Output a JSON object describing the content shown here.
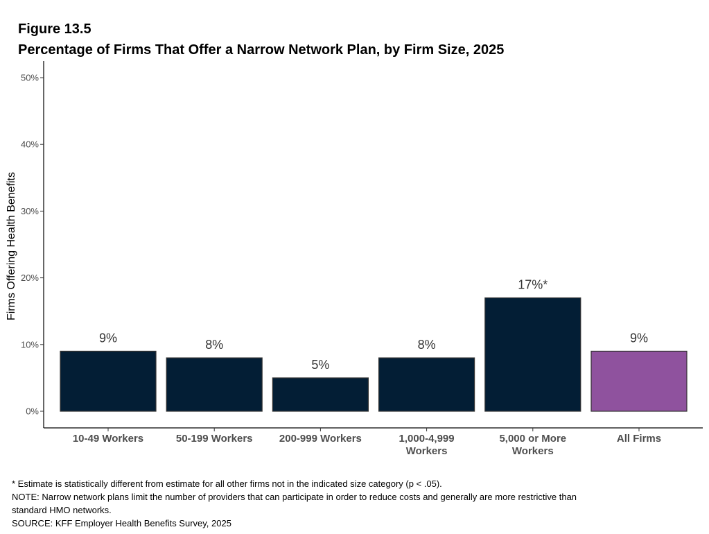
{
  "figure_label": "Figure 13.5",
  "chart_data": {
    "type": "bar",
    "title": "Percentage of Firms That Offer a Narrow Network Plan, by Firm Size, 2025",
    "xlabel": "",
    "ylabel": "Firms Offering Health Benefits",
    "ylim": [
      0,
      50
    ],
    "yticks": [
      "0%",
      "10%",
      "20%",
      "30%",
      "40%",
      "50%"
    ],
    "ytick_values": [
      0,
      10,
      20,
      30,
      40,
      50
    ],
    "categories": [
      [
        "10-49 Workers"
      ],
      [
        "50-199 Workers"
      ],
      [
        "200-999 Workers"
      ],
      [
        "1,000-4,999",
        "Workers"
      ],
      [
        "5,000 or More",
        "Workers"
      ],
      [
        "All Firms"
      ]
    ],
    "values": [
      9,
      8,
      5,
      8,
      17,
      9
    ],
    "data_labels": [
      "9%",
      "8%",
      "5%",
      "8%",
      "17%*",
      "9%"
    ],
    "bar_colors": [
      "#031e35",
      "#031e35",
      "#031e35",
      "#031e35",
      "#031e35",
      "#8f529e"
    ],
    "grid": false,
    "legend": "none"
  },
  "footnotes": [
    "* Estimate is statistically different from estimate for all other firms not in the indicated size category (p < .05).",
    "NOTE: Narrow network plans limit the number of providers that can participate in order to reduce costs and generally are more restrictive than",
    "standard HMO networks.",
    "SOURCE: KFF Employer Health Benefits Survey, 2025"
  ]
}
